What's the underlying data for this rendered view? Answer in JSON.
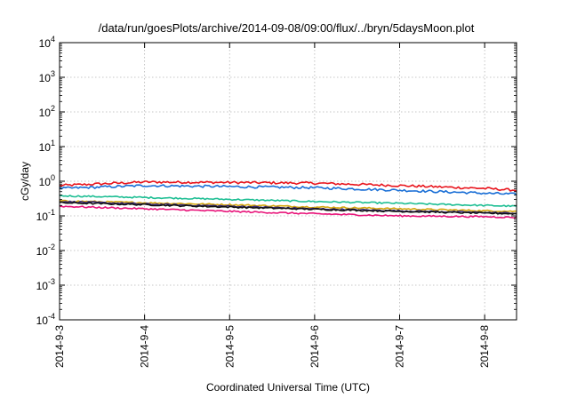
{
  "chart_data": {
    "type": "line",
    "title": "/data/run/goesPlots/archive/2014-09-08/09:00/flux/../bryn/5daysMoon.plot",
    "xlabel": "Coordinated Universal Time (UTC)",
    "ylabel": "cGy/day",
    "x_ticks": [
      "2014-9-3",
      "2014-9-4",
      "2014-9-5",
      "2014-9-6",
      "2014-9-7",
      "2014-9-8"
    ],
    "x_range": [
      "2014-09-03T00:00",
      "2014-09-08T09:00"
    ],
    "y_scale": "log",
    "y_ticks": [
      {
        "base": "10",
        "exp": "-4"
      },
      {
        "base": "10",
        "exp": "-3"
      },
      {
        "base": "10",
        "exp": "-2"
      },
      {
        "base": "10",
        "exp": "-1"
      },
      {
        "base": "10",
        "exp": "0"
      },
      {
        "base": "10",
        "exp": "1"
      },
      {
        "base": "10",
        "exp": "2"
      },
      {
        "base": "10",
        "exp": "3"
      },
      {
        "base": "10",
        "exp": "4"
      }
    ],
    "ylim": [
      0.0001,
      10000
    ],
    "grid": true,
    "legend": "none",
    "series": [
      {
        "color": "#e8141c",
        "x": [
          "2014-09-03",
          "2014-09-04",
          "2014-09-05",
          "2014-09-06",
          "2014-09-07",
          "2014-09-08",
          "2014-09-08T09:00"
        ],
        "values": [
          0.75,
          0.95,
          0.92,
          0.88,
          0.75,
          0.62,
          0.55
        ]
      },
      {
        "color": "#1a6fd6",
        "x": [
          "2014-09-03",
          "2014-09-04",
          "2014-09-05",
          "2014-09-06",
          "2014-09-07",
          "2014-09-08",
          "2014-09-08T09:00"
        ],
        "values": [
          0.62,
          0.75,
          0.7,
          0.65,
          0.55,
          0.45,
          0.42
        ]
      },
      {
        "color": "#1dbe93",
        "x": [
          "2014-09-03",
          "2014-09-04",
          "2014-09-05",
          "2014-09-06",
          "2014-09-07",
          "2014-09-08",
          "2014-09-08T09:00"
        ],
        "values": [
          0.38,
          0.34,
          0.3,
          0.26,
          0.23,
          0.2,
          0.19
        ]
      },
      {
        "color": "#d4a60d",
        "x": [
          "2014-09-03",
          "2014-09-04",
          "2014-09-05",
          "2014-09-06",
          "2014-09-07",
          "2014-09-08",
          "2014-09-08T09:00"
        ],
        "values": [
          0.27,
          0.24,
          0.21,
          0.18,
          0.16,
          0.14,
          0.135
        ]
      },
      {
        "color": "#3a2a78",
        "x": [
          "2014-09-03",
          "2014-09-04",
          "2014-09-05",
          "2014-09-06",
          "2014-09-07",
          "2014-09-08",
          "2014-09-08T09:00"
        ],
        "values": [
          0.26,
          0.22,
          0.19,
          0.16,
          0.14,
          0.125,
          0.12
        ]
      },
      {
        "color": "#111111",
        "x": [
          "2014-09-03",
          "2014-09-04",
          "2014-09-05",
          "2014-09-06",
          "2014-09-07",
          "2014-09-08",
          "2014-09-08T09:00"
        ],
        "values": [
          0.24,
          0.21,
          0.18,
          0.155,
          0.135,
          0.12,
          0.115
        ]
      },
      {
        "color": "#e8147a",
        "x": [
          "2014-09-03",
          "2014-09-04",
          "2014-09-05",
          "2014-09-06",
          "2014-09-07",
          "2014-09-08",
          "2014-09-08T09:00"
        ],
        "values": [
          0.19,
          0.16,
          0.135,
          0.115,
          0.1,
          0.095,
          0.09
        ]
      }
    ]
  }
}
